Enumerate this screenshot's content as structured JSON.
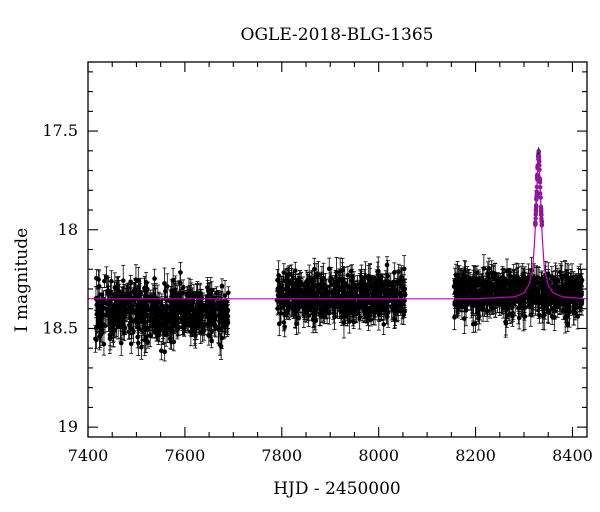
{
  "chart_data": {
    "type": "scatter",
    "title": "OGLE-2018-BLG-1365",
    "xlabel": "HJD - 2450000",
    "ylabel": "I magnitude",
    "xlim": [
      7400,
      8430
    ],
    "ylim": [
      19.05,
      17.15
    ],
    "y_inverted": true,
    "xticks": [
      7400,
      7600,
      7800,
      8000,
      8200,
      8400
    ],
    "xtick_labels": [
      "7400",
      "7600",
      "7800",
      "8000",
      "8200",
      "8400"
    ],
    "yticks": [
      17.5,
      18,
      18.5,
      19
    ],
    "ytick_labels": [
      "17.5",
      "18",
      "18.5",
      "19"
    ],
    "grid": false,
    "legend": "none",
    "colors": {
      "data": "#000000",
      "model": "#c400c4",
      "peak_points": "#7a1f8a"
    },
    "baseline_mag": 18.35,
    "peak": {
      "t0": 8330,
      "mag": 17.62
    },
    "seasons": [
      {
        "x_range": [
          7415,
          7690
        ],
        "mean": 18.42,
        "scatter": 0.1
      },
      {
        "x_range": [
          7790,
          8055
        ],
        "mean": 18.34,
        "scatter": 0.08
      },
      {
        "x_range": [
          8155,
          8420
        ],
        "mean": 18.32,
        "scatter": 0.08
      }
    ],
    "series": [
      {
        "type": "line",
        "points": [
          [
            7400,
            18.35
          ],
          [
            8200,
            18.35
          ],
          [
            8280,
            18.34
          ],
          [
            8300,
            18.32
          ],
          [
            8310,
            18.28
          ],
          [
            8318,
            18.2
          ],
          [
            8322,
            18.05
          ],
          [
            8325,
            17.9
          ],
          [
            8327,
            17.76
          ],
          [
            8329,
            17.65
          ],
          [
            8330,
            17.62
          ],
          [
            8331,
            17.65
          ],
          [
            8333,
            17.76
          ],
          [
            8335,
            17.9
          ],
          [
            8338,
            18.05
          ],
          [
            8342,
            18.2
          ],
          [
            8350,
            18.28
          ],
          [
            8360,
            18.32
          ],
          [
            8380,
            18.34
          ],
          [
            8430,
            18.35
          ]
        ]
      }
    ]
  }
}
